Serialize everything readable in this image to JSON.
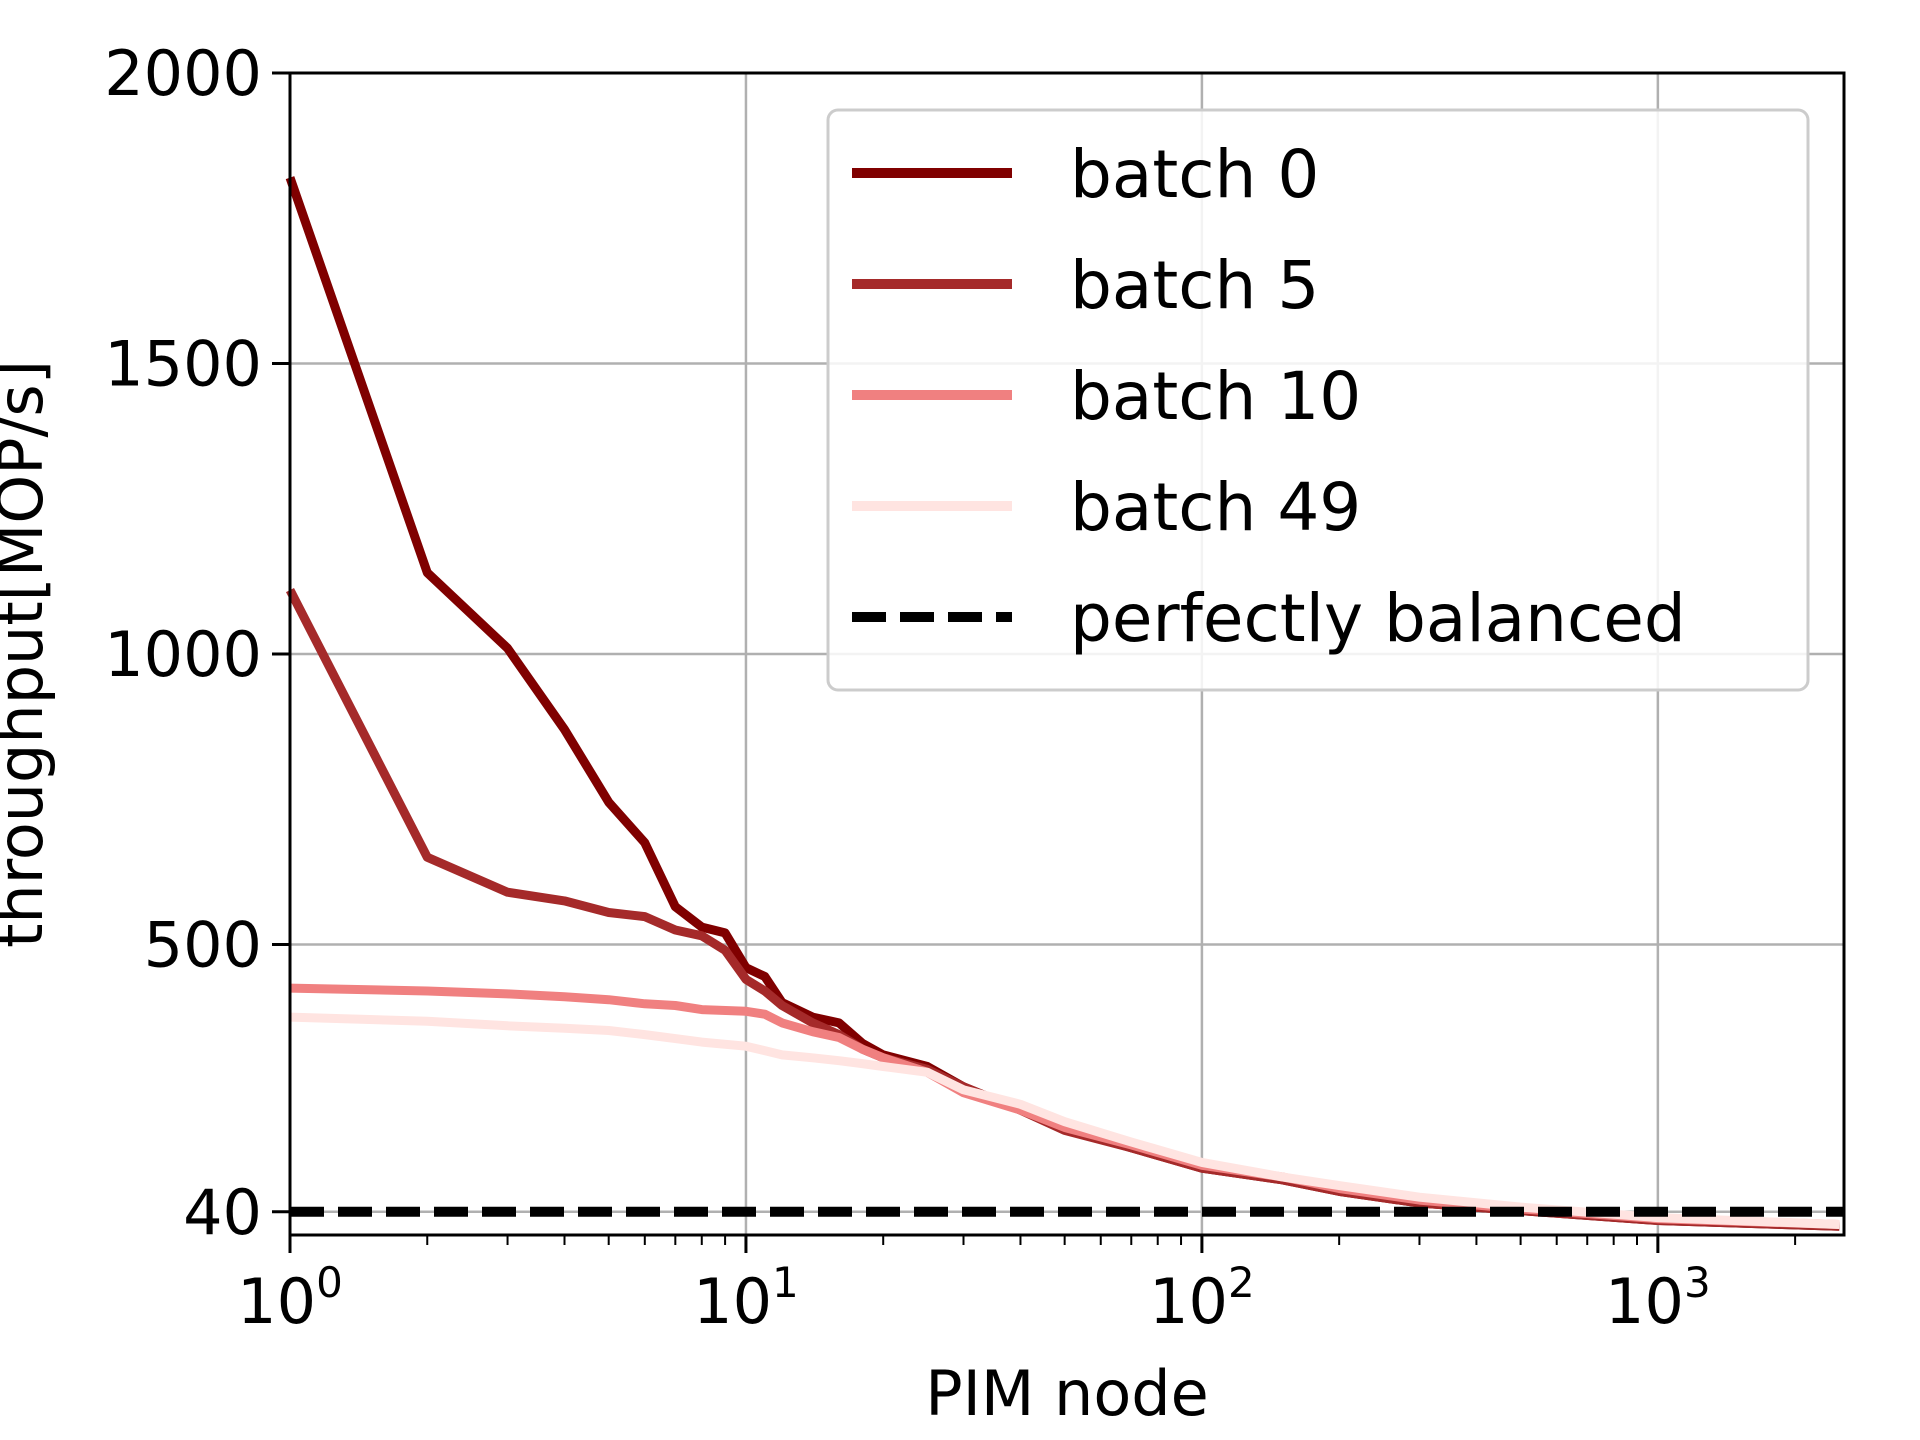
{
  "chart_data": {
    "type": "line",
    "title": "",
    "xlabel": "PIM node",
    "ylabel": "throughput[MOP/s]",
    "xscale": "log",
    "xlim": [
      1,
      2560
    ],
    "ylim": [
      0,
      2000
    ],
    "x_ticks": [
      {
        "value": 1,
        "base": "10",
        "exp": "0"
      },
      {
        "value": 10,
        "base": "10",
        "exp": "1"
      },
      {
        "value": 100,
        "base": "10",
        "exp": "2"
      },
      {
        "value": 1000,
        "base": "10",
        "exp": "3"
      }
    ],
    "y_ticks": [
      {
        "value": 40,
        "label": "40"
      },
      {
        "value": 500,
        "label": "500"
      },
      {
        "value": 1000,
        "label": "1000"
      },
      {
        "value": 1500,
        "label": "1500"
      },
      {
        "value": 2000,
        "label": "2000"
      }
    ],
    "grid": true,
    "legend_position": "top-right",
    "series": [
      {
        "name": "batch 0",
        "color": "#800000",
        "style": "solid",
        "points": [
          [
            1,
            1820
          ],
          [
            2,
            1140
          ],
          [
            3,
            1010
          ],
          [
            4,
            870
          ],
          [
            5,
            745
          ],
          [
            6,
            675
          ],
          [
            7,
            565
          ],
          [
            8,
            530
          ],
          [
            9,
            520
          ],
          [
            10,
            460
          ],
          [
            11,
            445
          ],
          [
            12,
            400
          ],
          [
            14,
            375
          ],
          [
            16,
            365
          ],
          [
            18,
            330
          ],
          [
            20,
            310
          ],
          [
            25,
            290
          ],
          [
            30,
            255
          ],
          [
            40,
            215
          ],
          [
            50,
            185
          ],
          [
            70,
            150
          ],
          [
            100,
            115
          ],
          [
            150,
            95
          ],
          [
            200,
            75
          ],
          [
            300,
            55
          ],
          [
            500,
            42
          ],
          [
            1000,
            25
          ],
          [
            2500,
            15
          ]
        ]
      },
      {
        "name": "batch 5",
        "color": "#a52a2a",
        "style": "solid",
        "points": [
          [
            1,
            1110
          ],
          [
            2,
            650
          ],
          [
            3,
            590
          ],
          [
            4,
            575
          ],
          [
            5,
            555
          ],
          [
            6,
            548
          ],
          [
            7,
            525
          ],
          [
            8,
            515
          ],
          [
            9,
            490
          ],
          [
            10,
            440
          ],
          [
            11,
            420
          ],
          [
            12,
            395
          ],
          [
            14,
            365
          ],
          [
            16,
            345
          ],
          [
            18,
            320
          ],
          [
            20,
            305
          ],
          [
            25,
            285
          ],
          [
            30,
            255
          ],
          [
            40,
            215
          ],
          [
            50,
            180
          ],
          [
            70,
            150
          ],
          [
            100,
            115
          ],
          [
            150,
            95
          ],
          [
            200,
            75
          ],
          [
            300,
            55
          ],
          [
            500,
            42
          ],
          [
            1000,
            25
          ],
          [
            2500,
            15
          ]
        ]
      },
      {
        "name": "batch 10",
        "color": "#f08080",
        "style": "solid",
        "points": [
          [
            1,
            425
          ],
          [
            2,
            420
          ],
          [
            3,
            415
          ],
          [
            4,
            410
          ],
          [
            5,
            405
          ],
          [
            6,
            398
          ],
          [
            7,
            395
          ],
          [
            8,
            388
          ],
          [
            10,
            385
          ],
          [
            11,
            380
          ],
          [
            12,
            365
          ],
          [
            14,
            350
          ],
          [
            16,
            340
          ],
          [
            18,
            320
          ],
          [
            20,
            305
          ],
          [
            25,
            280
          ],
          [
            30,
            245
          ],
          [
            40,
            215
          ],
          [
            50,
            185
          ],
          [
            70,
            155
          ],
          [
            100,
            120
          ],
          [
            150,
            100
          ],
          [
            200,
            80
          ],
          [
            300,
            60
          ],
          [
            500,
            45
          ],
          [
            1000,
            28
          ],
          [
            2500,
            18
          ]
        ]
      },
      {
        "name": "batch 49",
        "color": "#ffe4e1",
        "style": "solid",
        "points": [
          [
            1,
            375
          ],
          [
            2,
            368
          ],
          [
            3,
            360
          ],
          [
            4,
            356
          ],
          [
            5,
            352
          ],
          [
            6,
            345
          ],
          [
            7,
            338
          ],
          [
            8,
            332
          ],
          [
            10,
            325
          ],
          [
            12,
            310
          ],
          [
            14,
            305
          ],
          [
            16,
            300
          ],
          [
            18,
            295
          ],
          [
            20,
            290
          ],
          [
            25,
            280
          ],
          [
            30,
            250
          ],
          [
            40,
            225
          ],
          [
            50,
            195
          ],
          [
            70,
            160
          ],
          [
            100,
            125
          ],
          [
            150,
            100
          ],
          [
            200,
            85
          ],
          [
            300,
            65
          ],
          [
            500,
            48
          ],
          [
            1000,
            30
          ],
          [
            2500,
            18
          ]
        ]
      },
      {
        "name": "perfectly balanced",
        "color": "#000000",
        "style": "dashed",
        "points": [
          [
            1,
            40
          ],
          [
            2560,
            40
          ]
        ]
      }
    ]
  }
}
